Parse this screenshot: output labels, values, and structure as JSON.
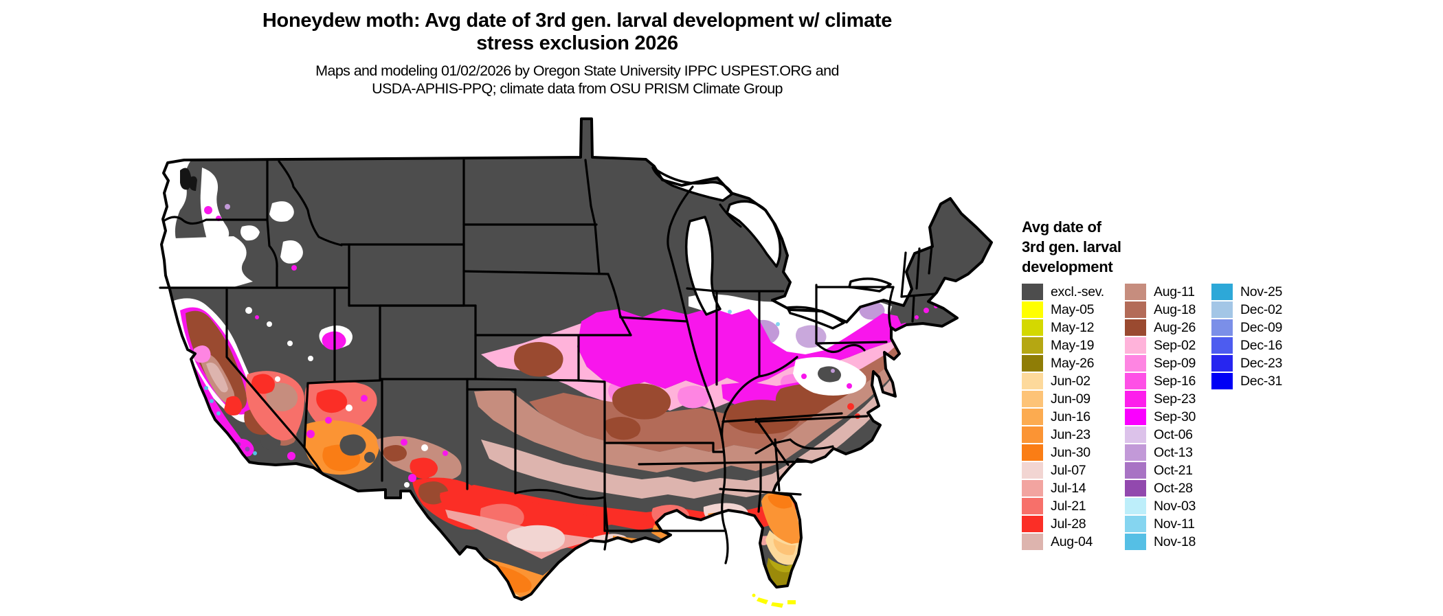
{
  "title": {
    "line1": "Honeydew moth: Avg date of 3rd gen. larval development w/ climate",
    "line2": "stress exclusion 2026"
  },
  "subtitle": {
    "line1": "Maps and modeling 01/02/2026 by Oregon State University IPPC USPEST.ORG and",
    "line2": "USDA-APHIS-PPQ; climate data from OSU PRISM Climate Group"
  },
  "legend": {
    "title_line1": "Avg date of",
    "title_line2": "3rd gen. larval",
    "title_line3": "development",
    "columns": [
      {
        "entries": [
          {
            "label": "excl.-sev.",
            "color": "#4d4d4d"
          },
          {
            "label": "May-05",
            "color": "#ffff00"
          },
          {
            "label": "May-12",
            "color": "#d4d800"
          },
          {
            "label": "May-19",
            "color": "#b5a712"
          },
          {
            "label": "May-26",
            "color": "#8f7d06"
          },
          {
            "label": "Jun-02",
            "color": "#fdd99b"
          },
          {
            "label": "Jun-09",
            "color": "#fdc377"
          },
          {
            "label": "Jun-16",
            "color": "#fcab50"
          },
          {
            "label": "Jun-23",
            "color": "#fb9434"
          },
          {
            "label": "Jun-30",
            "color": "#fa7d15"
          },
          {
            "label": "Jul-07",
            "color": "#f2d5d2"
          },
          {
            "label": "Jul-14",
            "color": "#f2a4a0"
          },
          {
            "label": "Jul-21",
            "color": "#f7706a"
          },
          {
            "label": "Jul-28",
            "color": "#fb2e26"
          },
          {
            "label": "Aug-04",
            "color": "#ddb4ae"
          }
        ]
      },
      {
        "entries": [
          {
            "label": "Aug-11",
            "color": "#c68d7e"
          },
          {
            "label": "Aug-18",
            "color": "#b36b58"
          },
          {
            "label": "Aug-26",
            "color": "#9a4a30"
          },
          {
            "label": "Sep-02",
            "color": "#ffb3da"
          },
          {
            "label": "Sep-09",
            "color": "#fe85e2"
          },
          {
            "label": "Sep-16",
            "color": "#fe50e6"
          },
          {
            "label": "Sep-23",
            "color": "#fd1fec"
          },
          {
            "label": "Sep-30",
            "color": "#fa00ff"
          },
          {
            "label": "Oct-06",
            "color": "#dcc2ea"
          },
          {
            "label": "Oct-13",
            "color": "#c299d8"
          },
          {
            "label": "Oct-21",
            "color": "#a873c4"
          },
          {
            "label": "Oct-28",
            "color": "#9249ae"
          },
          {
            "label": "Nov-03",
            "color": "#bdeefa"
          },
          {
            "label": "Nov-11",
            "color": "#85d5f0"
          },
          {
            "label": "Nov-18",
            "color": "#55bfe5"
          }
        ]
      },
      {
        "entries": [
          {
            "label": "Nov-25",
            "color": "#2da8d8"
          },
          {
            "label": "Dec-02",
            "color": "#a3c6e6"
          },
          {
            "label": "Dec-09",
            "color": "#7b8fe8"
          },
          {
            "label": "Dec-16",
            "color": "#4d5cf0"
          },
          {
            "label": "Dec-23",
            "color": "#2726f0"
          },
          {
            "label": "Dec-31",
            "color": "#0000f5"
          }
        ]
      }
    ]
  },
  "map": {
    "excluded_color": "#4d4d4d",
    "background_color": "#ffffff",
    "border_color": "#000000"
  }
}
